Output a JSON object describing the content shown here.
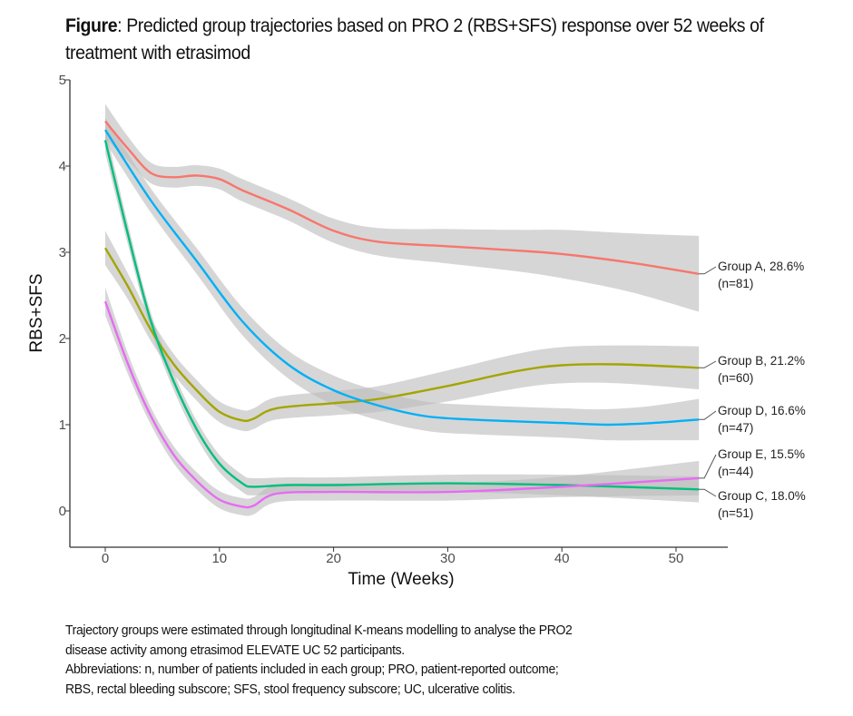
{
  "title": {
    "bold": "Figure",
    "text": ": Predicted group trajectories based on PRO 2 (RBS+SFS) response over 52 weeks of treatment with etrasimod"
  },
  "footnote": {
    "lines": [
      "Trajectory groups were estimated through longitudinal K-means modelling to analyse the PRO2",
      "disease activity among etrasimod ELEVATE UC 52 participants.",
      "Abbreviations: n, number of patients included in each group; PRO, patient-reported outcome;",
      "RBS, rectal bleeding subscore; SFS, stool frequency subscore; UC, ulcerative colitis."
    ]
  },
  "chart_data": {
    "type": "line",
    "xlabel": "Time (Weeks)",
    "ylabel": "RBS+SFS",
    "xlim": [
      -3,
      55
    ],
    "ylim": [
      -0.3,
      5
    ],
    "xticks": [
      0,
      10,
      20,
      30,
      40,
      50
    ],
    "yticks": [
      0,
      1,
      2,
      3,
      4,
      5
    ],
    "grid": false,
    "legend": "direct labels at right end of lines",
    "confidence_band_color": "#bdbdbd",
    "series": [
      {
        "name": "Group A, 28.6%",
        "n_label": "(n=81)",
        "color": "#F8766D",
        "x": [
          0,
          2,
          4,
          6,
          8,
          10,
          12,
          16,
          20,
          24,
          30,
          36,
          40,
          46,
          52
        ],
        "y": [
          4.52,
          4.2,
          3.92,
          3.87,
          3.89,
          3.85,
          3.72,
          3.5,
          3.25,
          3.12,
          3.07,
          3.02,
          2.98,
          2.88,
          2.75
        ],
        "ci": [
          0.2,
          0.14,
          0.12,
          0.12,
          0.12,
          0.12,
          0.13,
          0.13,
          0.14,
          0.16,
          0.2,
          0.24,
          0.28,
          0.34,
          0.44
        ]
      },
      {
        "name": "Group B, 21.2%",
        "n_label": "(n=60)",
        "color": "#A3A500",
        "x": [
          0,
          2,
          4,
          6,
          8,
          10,
          12,
          13,
          15,
          20,
          24,
          30,
          36,
          40,
          45,
          52
        ],
        "y": [
          3.05,
          2.6,
          2.1,
          1.7,
          1.4,
          1.15,
          1.05,
          1.07,
          1.19,
          1.25,
          1.3,
          1.45,
          1.62,
          1.69,
          1.7,
          1.66
        ],
        "ci": [
          0.2,
          0.15,
          0.13,
          0.12,
          0.12,
          0.12,
          0.12,
          0.12,
          0.13,
          0.14,
          0.15,
          0.18,
          0.2,
          0.21,
          0.22,
          0.25
        ]
      },
      {
        "name": "Group C, 18.0%",
        "n_label": "(n=51)",
        "color": "#00BF7D",
        "x": [
          0,
          2,
          4,
          6,
          8,
          10,
          12,
          13,
          16,
          20,
          30,
          40,
          52
        ],
        "y": [
          4.3,
          3.2,
          2.2,
          1.5,
          0.95,
          0.55,
          0.32,
          0.28,
          0.3,
          0.3,
          0.32,
          0.3,
          0.25
        ],
        "ci": [
          0.15,
          0.12,
          0.1,
          0.1,
          0.1,
          0.1,
          0.1,
          0.1,
          0.09,
          0.09,
          0.1,
          0.12,
          0.15
        ]
      },
      {
        "name": "Group D, 16.6%",
        "n_label": "(n=47)",
        "color": "#00B0F6",
        "x": [
          0,
          4,
          8,
          12,
          16,
          20,
          24,
          28,
          32,
          40,
          44,
          48,
          52
        ],
        "y": [
          4.42,
          3.6,
          2.9,
          2.2,
          1.7,
          1.4,
          1.22,
          1.1,
          1.06,
          1.02,
          1.0,
          1.02,
          1.06
        ],
        "ci": [
          0.14,
          0.14,
          0.15,
          0.16,
          0.16,
          0.17,
          0.17,
          0.17,
          0.17,
          0.17,
          0.18,
          0.2,
          0.24
        ]
      },
      {
        "name": "Group E, 15.5%",
        "n_label": "(n=44)",
        "color": "#E76BF3",
        "x": [
          0,
          2,
          4,
          6,
          8,
          10,
          12,
          13,
          15,
          20,
          30,
          40,
          52
        ],
        "y": [
          2.43,
          1.7,
          1.1,
          0.65,
          0.35,
          0.13,
          0.05,
          0.06,
          0.2,
          0.22,
          0.22,
          0.28,
          0.38
        ],
        "ci": [
          0.16,
          0.12,
          0.1,
          0.1,
          0.1,
          0.1,
          0.1,
          0.1,
          0.1,
          0.1,
          0.1,
          0.12,
          0.2
        ]
      }
    ]
  }
}
